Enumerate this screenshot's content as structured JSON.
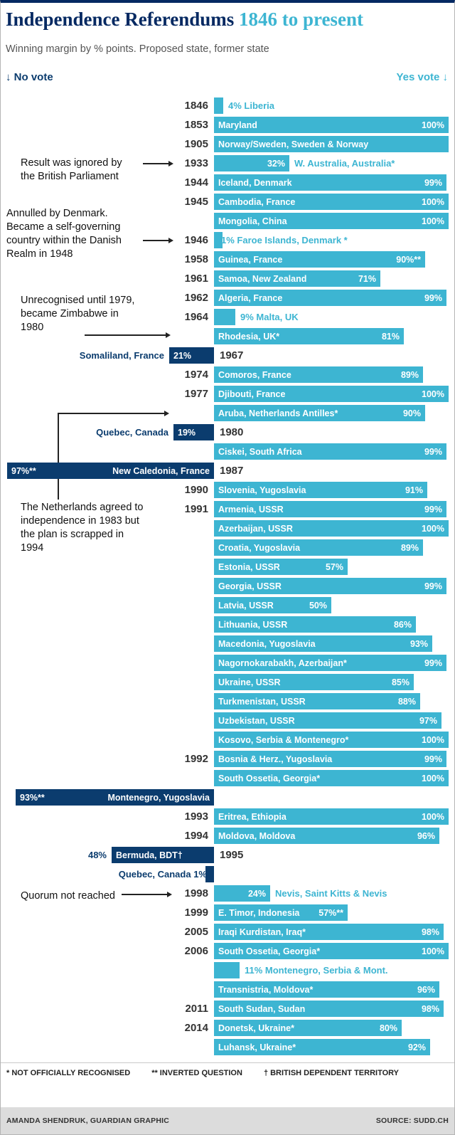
{
  "chart_data": {
    "type": "bar",
    "orientation": "diverging horizontal",
    "title_main": "Independence Referendums",
    "title_accent": "1846 to present",
    "subtitle": "Winning margin by % points. Proposed state, former state",
    "axis": {
      "left_label": "↓ No vote",
      "right_label": "Yes vote ↓"
    },
    "units": "winning margin in % points (bar length, 0–100)",
    "colors": {
      "yes_bar": "#3db5d2",
      "no_bar": "#0b3c6e",
      "title": "#052962"
    },
    "rows": [
      {
        "year": "1846",
        "side": "yes",
        "mode": "tiny",
        "pct": 4,
        "out_text": "4% Liberia"
      },
      {
        "year": "1853",
        "side": "yes",
        "mode": "normal",
        "label": "Maryland",
        "pct": 100,
        "pct_label": "100%"
      },
      {
        "year": "1905",
        "side": "yes",
        "mode": "label_only",
        "label": "Norway/Sweden, Sweden & Norway",
        "pct": 100
      },
      {
        "year": "1933",
        "side": "yes",
        "mode": "split",
        "label": "W. Australia, Australia*",
        "pct": 32,
        "pct_label": "32%"
      },
      {
        "year": "1944",
        "side": "yes",
        "mode": "normal",
        "label": "Iceland, Denmark",
        "pct": 99,
        "pct_label": "99%"
      },
      {
        "year": "1945",
        "side": "yes",
        "mode": "normal",
        "label": "Cambodia, France",
        "pct": 100,
        "pct_label": "100%"
      },
      {
        "year": "",
        "side": "yes",
        "mode": "normal",
        "label": "Mongolia, China",
        "pct": 100,
        "pct_label": "100%"
      },
      {
        "year": "1946",
        "side": "yes",
        "mode": "tiny",
        "pct": 1,
        "out_text": "1% Faroe Islands, Denmark *"
      },
      {
        "year": "1958",
        "side": "yes",
        "mode": "normal",
        "label": "Guinea, France",
        "pct": 90,
        "pct_label": "90%**"
      },
      {
        "year": "1961",
        "side": "yes",
        "mode": "normal",
        "label": "Samoa, New Zealand",
        "pct": 71,
        "pct_label": "71%"
      },
      {
        "year": "1962",
        "side": "yes",
        "mode": "normal",
        "label": "Algeria, France",
        "pct": 99,
        "pct_label": "99%"
      },
      {
        "year": "1964",
        "side": "yes",
        "mode": "tiny",
        "pct": 9,
        "out_text": "9% Malta, UK"
      },
      {
        "year": "",
        "side": "yes",
        "mode": "normal",
        "label": "Rhodesia, UK*",
        "pct": 81,
        "pct_label": "81%"
      },
      {
        "year": "1967",
        "side": "no",
        "mode": "no_normal",
        "label": "Somaliland, France",
        "pct": 21,
        "pct_label": "21%"
      },
      {
        "year": "1974",
        "side": "yes",
        "mode": "normal",
        "label": "Comoros, France",
        "pct": 89,
        "pct_label": "89%"
      },
      {
        "year": "1977",
        "side": "yes",
        "mode": "normal",
        "label": "Djibouti, France",
        "pct": 100,
        "pct_label": "100%"
      },
      {
        "year": "",
        "side": "yes",
        "mode": "normal",
        "label": "Aruba, Netherlands Antilles*",
        "pct": 90,
        "pct_label": "90%"
      },
      {
        "year": "1980",
        "side": "no",
        "mode": "no_normal",
        "label": "Quebec, Canada",
        "pct": 19,
        "pct_label": "19%"
      },
      {
        "year": "",
        "side": "yes",
        "mode": "normal",
        "label": "Ciskei, South Africa",
        "pct": 99,
        "pct_label": "99%"
      },
      {
        "year": "1987",
        "side": "no",
        "mode": "no_big",
        "label": "New Caledonia, France",
        "pct": 97,
        "pct_label": "97%**"
      },
      {
        "year": "1990",
        "side": "yes",
        "mode": "normal",
        "label": "Slovenia, Yugoslavia",
        "pct": 91,
        "pct_label": "91%"
      },
      {
        "year": "1991",
        "side": "yes",
        "mode": "normal",
        "label": "Armenia, USSR",
        "pct": 99,
        "pct_label": "99%"
      },
      {
        "year": "",
        "side": "yes",
        "mode": "normal",
        "label": "Azerbaijan, USSR",
        "pct": 100,
        "pct_label": "100%"
      },
      {
        "year": "",
        "side": "yes",
        "mode": "normal",
        "label": "Croatia, Yugoslavia",
        "pct": 89,
        "pct_label": "89%"
      },
      {
        "year": "",
        "side": "yes",
        "mode": "normal",
        "label": "Estonia, USSR",
        "pct": 57,
        "pct_label": "57%"
      },
      {
        "year": "",
        "side": "yes",
        "mode": "normal",
        "label": "Georgia, USSR",
        "pct": 99,
        "pct_label": "99%"
      },
      {
        "year": "",
        "side": "yes",
        "mode": "normal",
        "label": "Latvia, USSR",
        "pct": 50,
        "pct_label": "50%"
      },
      {
        "year": "",
        "side": "yes",
        "mode": "normal",
        "label": "Lithuania, USSR",
        "pct": 86,
        "pct_label": "86%"
      },
      {
        "year": "",
        "side": "yes",
        "mode": "normal",
        "label": "Macedonia, Yugoslavia",
        "pct": 93,
        "pct_label": "93%"
      },
      {
        "year": "",
        "side": "yes",
        "mode": "normal",
        "label": "Nagornokarabakh, Azerbaijan*",
        "pct": 99,
        "pct_label": "99%"
      },
      {
        "year": "",
        "side": "yes",
        "mode": "normal",
        "label": "Ukraine, USSR",
        "pct": 85,
        "pct_label": "85%"
      },
      {
        "year": "",
        "side": "yes",
        "mode": "normal",
        "label": "Turkmenistan, USSR",
        "pct": 88,
        "pct_label": "88%"
      },
      {
        "year": "",
        "side": "yes",
        "mode": "normal",
        "label": "Uzbekistan, USSR",
        "pct": 97,
        "pct_label": "97%"
      },
      {
        "year": "",
        "side": "yes",
        "mode": "normal",
        "label": "Kosovo, Serbia & Montenegro*",
        "pct": 100,
        "pct_label": "100%"
      },
      {
        "year": "1992",
        "side": "yes",
        "mode": "normal",
        "label": "Bosnia & Herz., Yugoslavia",
        "pct": 99,
        "pct_label": "99%"
      },
      {
        "year": "",
        "side": "yes",
        "mode": "normal",
        "label": "South Ossetia, Georgia*",
        "pct": 100,
        "pct_label": "100%"
      },
      {
        "year": "",
        "side": "no",
        "mode": "no_big",
        "label": "Montenegro, Yugoslavia",
        "pct": 93,
        "pct_label": "93%**"
      },
      {
        "year": "1993",
        "side": "yes",
        "mode": "normal",
        "label": "Eritrea, Ethiopia",
        "pct": 100,
        "pct_label": "100%"
      },
      {
        "year": "1994",
        "side": "yes",
        "mode": "normal",
        "label": "Moldova, Moldova",
        "pct": 96,
        "pct_label": "96%"
      },
      {
        "year": "1995",
        "side": "no",
        "mode": "no_pct_out",
        "label": "Bermuda, BDT†",
        "pct": 48,
        "pct_label": "48%"
      },
      {
        "year": "",
        "side": "no",
        "mode": "no_tiny",
        "pct": 1,
        "out_text": "Quebec, Canada 1%"
      },
      {
        "year": "1998",
        "side": "yes",
        "mode": "split",
        "label": "Nevis, Saint Kitts & Nevis",
        "pct": 24,
        "pct_label": "24%"
      },
      {
        "year": "1999",
        "side": "yes",
        "mode": "normal",
        "label": "E. Timor, Indonesia",
        "pct": 57,
        "pct_label": "57%**"
      },
      {
        "year": "2005",
        "side": "yes",
        "mode": "normal",
        "label": "Iraqi Kurdistan, Iraq*",
        "pct": 98,
        "pct_label": "98%"
      },
      {
        "year": "2006",
        "side": "yes",
        "mode": "normal",
        "label": "South Ossetia, Georgia*",
        "pct": 100,
        "pct_label": "100%"
      },
      {
        "year": "",
        "side": "yes",
        "mode": "tiny",
        "pct": 11,
        "out_text": "11% Montenegro, Serbia & Mont."
      },
      {
        "year": "",
        "side": "yes",
        "mode": "normal",
        "label": "Transnistria, Moldova*",
        "pct": 96,
        "pct_label": "96%"
      },
      {
        "year": "2011",
        "side": "yes",
        "mode": "normal",
        "label": "South Sudan, Sudan",
        "pct": 98,
        "pct_label": "98%"
      },
      {
        "year": "2014",
        "side": "yes",
        "mode": "normal",
        "label": "Donetsk, Ukraine*",
        "pct": 80,
        "pct_label": "80%"
      },
      {
        "year": "",
        "side": "yes",
        "mode": "normal",
        "label": "Luhansk, Ukraine*",
        "pct": 92,
        "pct_label": "92%"
      }
    ],
    "annotations": [
      {
        "text": "Result was ignored by the British Parliament",
        "target_year": "1933"
      },
      {
        "text": "Annulled by Denmark. Became a self-governing country within the Danish Realm in 1948",
        "target_year": "1946"
      },
      {
        "text": "Unrecognised until 1979, became Zimbabwe in 1980",
        "target_year": "1964"
      },
      {
        "text": "The Netherlands agreed to independence in 1983 but the plan is scrapped in 1994",
        "target_year": "1977"
      },
      {
        "text": "Quorum not reached",
        "target_year": "1998"
      }
    ],
    "footnotes": [
      "* NOT OFFICIALLY RECOGNISED",
      "** INVERTED QUESTION",
      "† BRITISH DEPENDENT TERRITORY"
    ],
    "credit_left": "AMANDA SHENDRUK, GUARDIAN GRAPHIC",
    "credit_right": "SOURCE: SUDD.CH"
  }
}
